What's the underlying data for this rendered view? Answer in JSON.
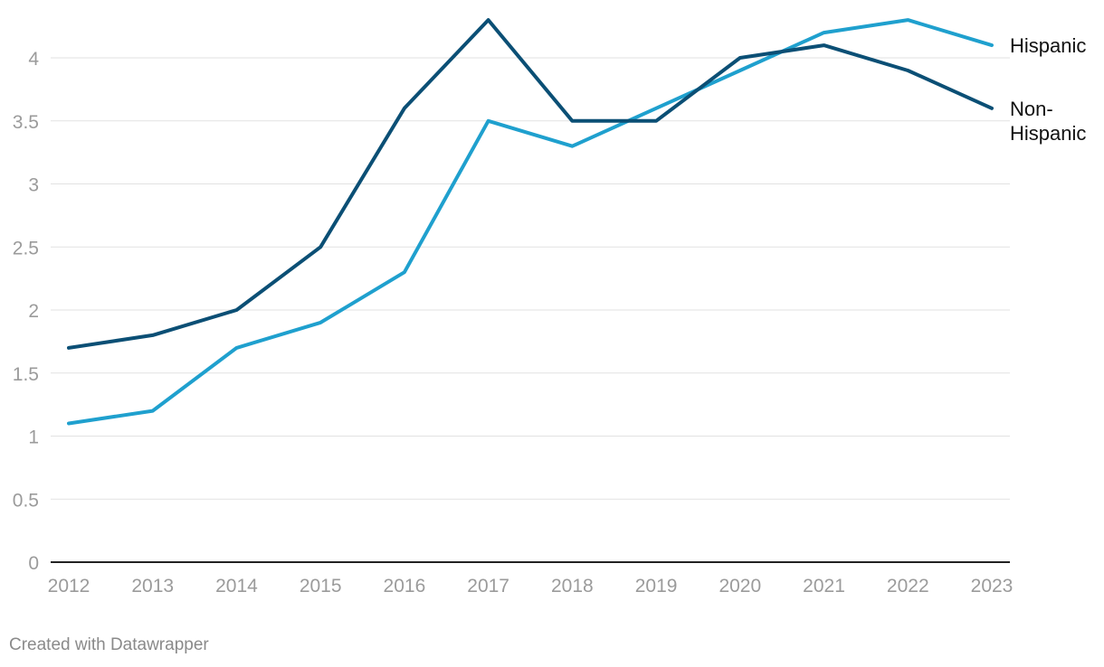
{
  "chart_data": {
    "type": "line",
    "title": "",
    "xlabel": "",
    "ylabel": "",
    "x": [
      "2012",
      "2013",
      "2014",
      "2015",
      "2016",
      "2017",
      "2018",
      "2019",
      "2020",
      "2021",
      "2022",
      "2023"
    ],
    "yticks": [
      "0",
      "0.5",
      "1",
      "1.5",
      "2",
      "2.5",
      "3",
      "3.5",
      "4"
    ],
    "ylim": [
      0,
      4.35
    ],
    "grid": true,
    "legend": "direct labels at right end of lines",
    "series": [
      {
        "name": "Hispanic",
        "label_lines": [
          "Hispanic"
        ],
        "color": "#1fa0ce",
        "values": [
          1.1,
          1.2,
          1.7,
          1.9,
          2.3,
          3.5,
          3.3,
          3.6,
          3.9,
          4.2,
          4.3,
          4.1
        ]
      },
      {
        "name": "Non-Hispanic",
        "label_lines": [
          "Non-",
          "Hispanic"
        ],
        "color": "#0b4f75",
        "values": [
          1.7,
          1.8,
          2.0,
          2.5,
          3.6,
          4.3,
          3.5,
          3.5,
          4.0,
          4.1,
          3.9,
          3.6
        ]
      }
    ]
  },
  "footer": {
    "credit": "Created with Datawrapper"
  }
}
